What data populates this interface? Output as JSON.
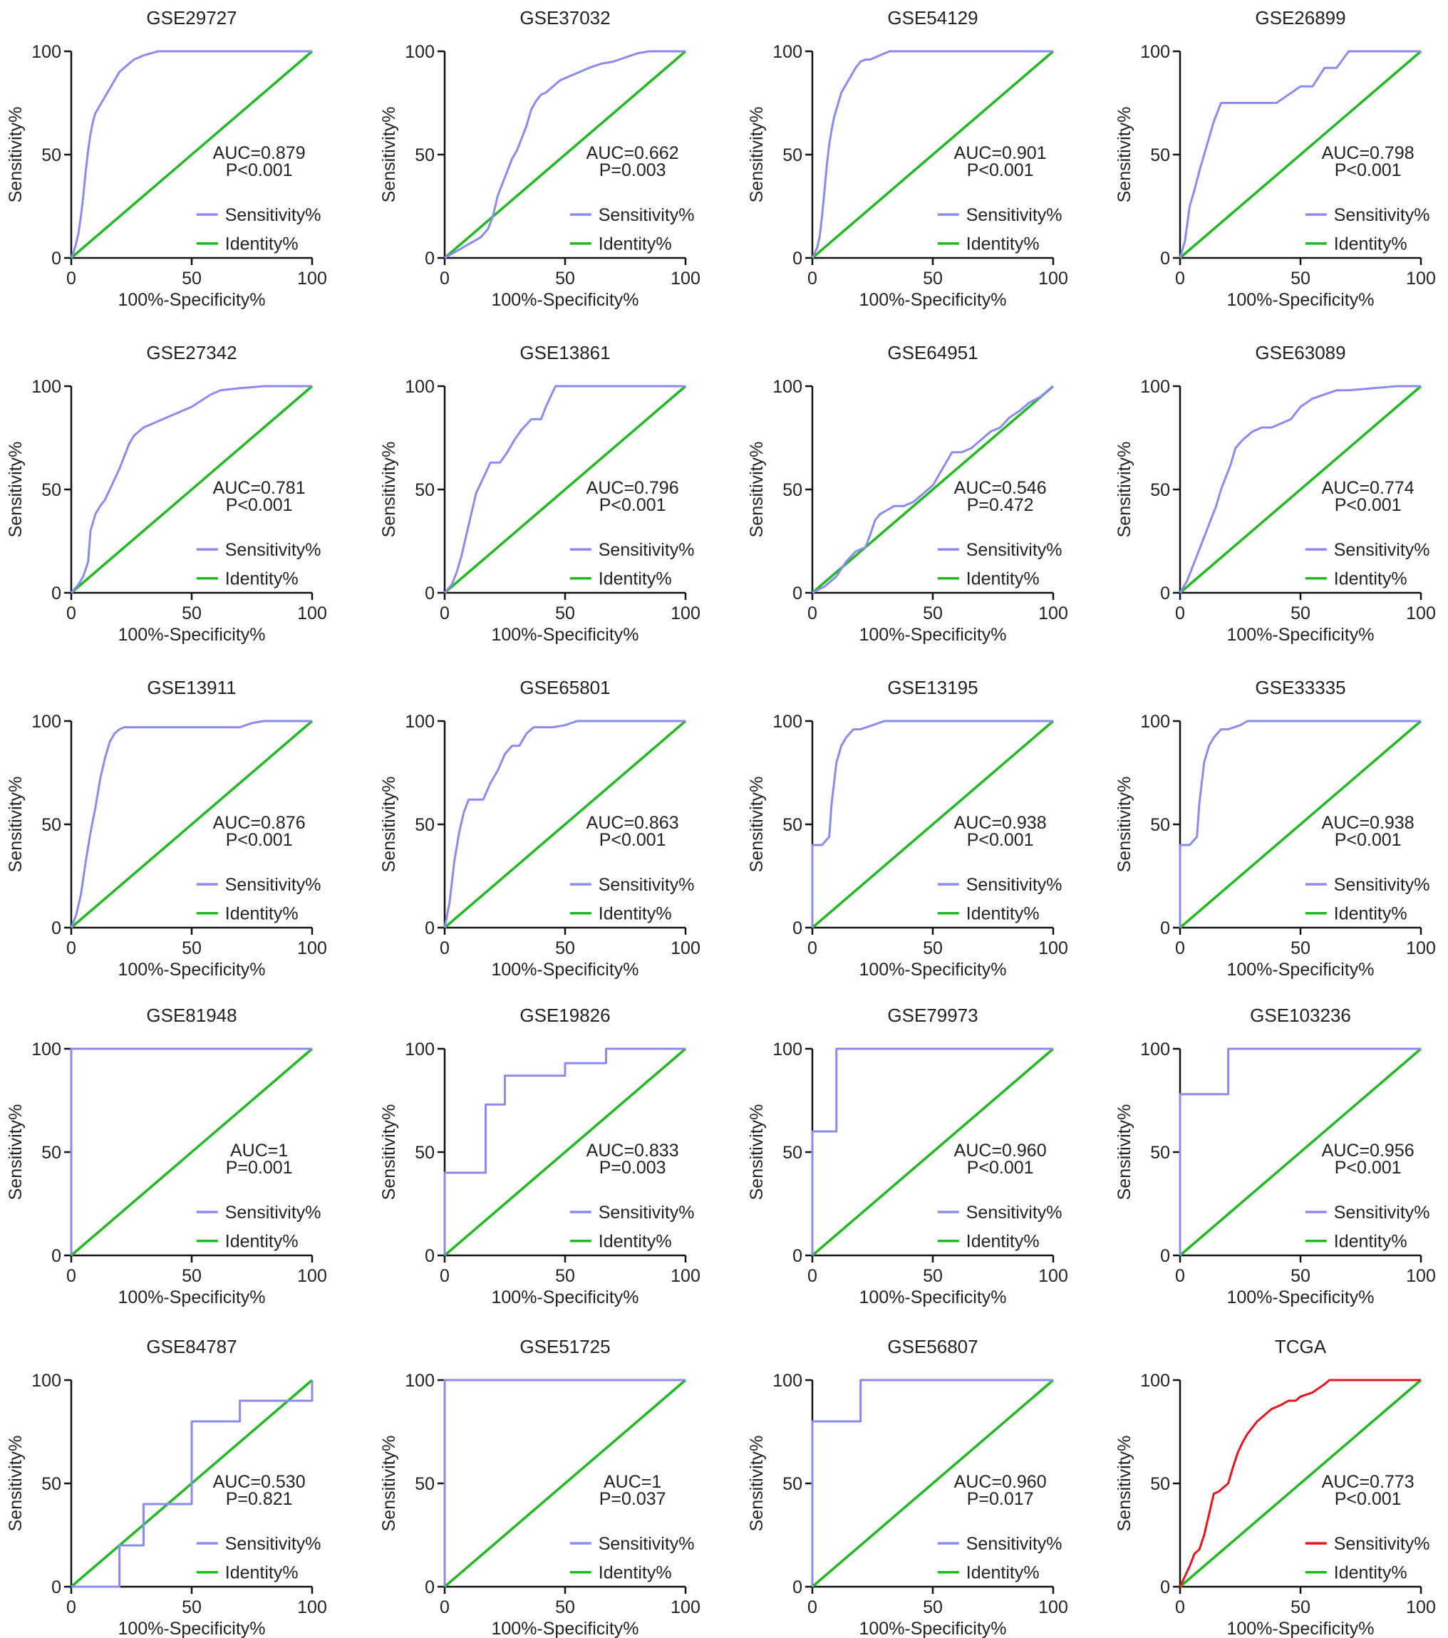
{
  "colors": {
    "sensitivity": "#8b8bef",
    "sensitivity_tcga": "#e8141c",
    "identity": "#22b822",
    "axis": "#111111"
  },
  "axis_labels": {
    "x": "100%-Specificity%",
    "y": "Sensitivity%",
    "ticks": [
      "0",
      "50",
      "100"
    ]
  },
  "chart_data": [
    {
      "type": "line",
      "title": "GSE29727",
      "auc": "AUC=0.879",
      "p": "P<0.001",
      "legend": [
        "Sensitivity%",
        "Identity%"
      ],
      "xlim": [
        0,
        100
      ],
      "ylim": [
        0,
        100
      ],
      "x": [
        0,
        1,
        2,
        3,
        4,
        5,
        6,
        7,
        8,
        9,
        10,
        12,
        14,
        16,
        18,
        20,
        22,
        24,
        26,
        28,
        30,
        33,
        36,
        40,
        45,
        50,
        100
      ],
      "y": [
        0,
        3,
        7,
        12,
        20,
        30,
        42,
        52,
        60,
        66,
        70,
        74,
        78,
        82,
        86,
        90,
        92,
        94,
        96,
        97,
        98,
        99,
        100,
        100,
        100,
        100,
        100
      ]
    },
    {
      "type": "line",
      "title": "GSE37032",
      "auc": "AUC=0.662",
      "p": "P=0.003",
      "legend": [
        "Sensitivity%",
        "Identity%"
      ],
      "xlim": [
        0,
        100
      ],
      "ylim": [
        0,
        100
      ],
      "x": [
        0,
        3,
        6,
        9,
        12,
        15,
        18,
        20,
        22,
        24,
        26,
        28,
        30,
        32,
        34,
        36,
        38,
        40,
        42,
        45,
        48,
        52,
        56,
        60,
        65,
        70,
        75,
        80,
        85,
        100
      ],
      "y": [
        0,
        2,
        4,
        6,
        8,
        10,
        14,
        20,
        30,
        36,
        42,
        48,
        52,
        58,
        64,
        72,
        76,
        79,
        80,
        83,
        86,
        88,
        90,
        92,
        94,
        95,
        97,
        99,
        100,
        100
      ]
    },
    {
      "type": "line",
      "title": "GSE54129",
      "auc": "AUC=0.901",
      "p": "P<0.001",
      "legend": [
        "Sensitivity%",
        "Identity%"
      ],
      "xlim": [
        0,
        100
      ],
      "ylim": [
        0,
        100
      ],
      "x": [
        0,
        2,
        3,
        4,
        5,
        6,
        7,
        8,
        9,
        10,
        11,
        12,
        14,
        16,
        18,
        20,
        22,
        24,
        28,
        32,
        100
      ],
      "y": [
        0,
        5,
        10,
        20,
        32,
        45,
        55,
        62,
        68,
        72,
        76,
        80,
        84,
        88,
        92,
        95,
        96,
        96,
        98,
        100,
        100
      ]
    },
    {
      "type": "line",
      "title": "GSE26899",
      "auc": "AUC=0.798",
      "p": "P<0.001",
      "legend": [
        "Sensitivity%",
        "Identity%"
      ],
      "xlim": [
        0,
        100
      ],
      "ylim": [
        0,
        100
      ],
      "x": [
        0,
        2,
        4,
        6,
        8,
        10,
        12,
        14,
        17,
        20,
        25,
        30,
        40,
        50,
        55,
        60,
        65,
        70,
        75,
        80,
        100
      ],
      "y": [
        0,
        8,
        25,
        33,
        42,
        50,
        58,
        66,
        75,
        75,
        75,
        75,
        75,
        83,
        83,
        92,
        92,
        100,
        100,
        100,
        100
      ]
    },
    {
      "type": "line",
      "title": "GSE27342",
      "auc": "AUC=0.781",
      "p": "P<0.001",
      "legend": [
        "Sensitivity%",
        "Identity%"
      ],
      "xlim": [
        0,
        100
      ],
      "ylim": [
        0,
        100
      ],
      "x": [
        0,
        3,
        5,
        7,
        8,
        10,
        12,
        14,
        16,
        18,
        20,
        22,
        24,
        26,
        28,
        30,
        34,
        38,
        42,
        46,
        50,
        54,
        58,
        62,
        70,
        80,
        90,
        100
      ],
      "y": [
        0,
        4,
        8,
        15,
        30,
        38,
        42,
        45,
        50,
        55,
        60,
        66,
        72,
        76,
        78,
        80,
        82,
        84,
        86,
        88,
        90,
        93,
        96,
        98,
        99,
        100,
        100,
        100
      ]
    },
    {
      "type": "line",
      "title": "GSE13861",
      "auc": "AUC=0.796",
      "p": "P<0.001",
      "legend": [
        "Sensitivity%",
        "Identity%"
      ],
      "xlim": [
        0,
        100
      ],
      "ylim": [
        0,
        100
      ],
      "x": [
        0,
        3,
        5,
        7,
        9,
        11,
        13,
        15,
        17,
        19,
        21,
        23,
        26,
        29,
        32,
        36,
        40,
        42,
        44,
        46,
        48,
        50,
        100
      ],
      "y": [
        0,
        4,
        10,
        18,
        28,
        38,
        48,
        53,
        58,
        63,
        63,
        63,
        68,
        74,
        79,
        84,
        84,
        90,
        95,
        100,
        100,
        100,
        100
      ]
    },
    {
      "type": "line",
      "title": "GSE64951",
      "auc": "AUC=0.546",
      "p": "P=0.472",
      "legend": [
        "Sensitivity%",
        "Identity%"
      ],
      "xlim": [
        0,
        100
      ],
      "ylim": [
        0,
        100
      ],
      "x": [
        0,
        5,
        10,
        14,
        18,
        22,
        24,
        26,
        28,
        31,
        34,
        38,
        42,
        46,
        50,
        54,
        58,
        62,
        66,
        70,
        74,
        78,
        82,
        86,
        90,
        95,
        98,
        100
      ],
      "y": [
        0,
        3,
        8,
        15,
        20,
        22,
        28,
        35,
        38,
        40,
        42,
        42,
        44,
        48,
        52,
        60,
        68,
        68,
        70,
        74,
        78,
        80,
        85,
        88,
        92,
        95,
        98,
        100
      ]
    },
    {
      "type": "line",
      "title": "GSE63089",
      "auc": "AUC=0.774",
      "p": "P<0.001",
      "legend": [
        "Sensitivity%",
        "Identity%"
      ],
      "xlim": [
        0,
        100
      ],
      "ylim": [
        0,
        100
      ],
      "x": [
        0,
        3,
        5,
        7,
        9,
        11,
        13,
        15,
        17,
        19,
        21,
        23,
        26,
        30,
        34,
        38,
        42,
        46,
        50,
        55,
        60,
        65,
        70,
        80,
        90,
        100
      ],
      "y": [
        0,
        6,
        12,
        18,
        24,
        30,
        36,
        42,
        50,
        56,
        62,
        70,
        74,
        78,
        80,
        80,
        82,
        84,
        90,
        94,
        96,
        98,
        98,
        99,
        100,
        100
      ]
    },
    {
      "type": "line",
      "title": "GSE13911",
      "auc": "AUC=0.876",
      "p": "P<0.001",
      "legend": [
        "Sensitivity%",
        "Identity%"
      ],
      "xlim": [
        0,
        100
      ],
      "ylim": [
        0,
        100
      ],
      "x": [
        0,
        2,
        4,
        6,
        8,
        10,
        12,
        14,
        16,
        18,
        20,
        22,
        25,
        30,
        40,
        50,
        60,
        70,
        75,
        80,
        100
      ],
      "y": [
        0,
        6,
        16,
        32,
        46,
        58,
        72,
        82,
        90,
        94,
        96,
        97,
        97,
        97,
        97,
        97,
        97,
        97,
        99,
        100,
        100
      ]
    },
    {
      "type": "line",
      "title": "GSE65801",
      "auc": "AUC=0.863",
      "p": "P<0.001",
      "legend": [
        "Sensitivity%",
        "Identity%"
      ],
      "xlim": [
        0,
        100
      ],
      "ylim": [
        0,
        100
      ],
      "x": [
        0,
        2,
        4,
        6,
        8,
        10,
        13,
        16,
        19,
        22,
        25,
        28,
        31,
        34,
        37,
        40,
        45,
        50,
        55,
        60,
        70,
        80,
        100
      ],
      "y": [
        0,
        12,
        32,
        46,
        56,
        62,
        62,
        62,
        70,
        76,
        84,
        88,
        88,
        94,
        97,
        97,
        97,
        98,
        100,
        100,
        100,
        100,
        100
      ]
    },
    {
      "type": "line",
      "title": "GSE13195",
      "auc": "AUC=0.938",
      "p": "P<0.001",
      "legend": [
        "Sensitivity%",
        "Identity%"
      ],
      "xlim": [
        0,
        100
      ],
      "ylim": [
        0,
        100
      ],
      "x": [
        0,
        0,
        4,
        7,
        8,
        10,
        12,
        14,
        17,
        20,
        25,
        30,
        40,
        100
      ],
      "y": [
        0,
        40,
        40,
        44,
        60,
        80,
        88,
        92,
        96,
        96,
        98,
        100,
        100,
        100
      ]
    },
    {
      "type": "line",
      "title": "GSE33335",
      "auc": "AUC=0.938",
      "p": "P<0.001",
      "legend": [
        "Sensitivity%",
        "Identity%"
      ],
      "xlim": [
        0,
        100
      ],
      "ylim": [
        0,
        100
      ],
      "x": [
        0,
        0,
        4,
        7,
        8,
        10,
        12,
        14,
        17,
        20,
        25,
        28,
        35,
        100
      ],
      "y": [
        0,
        40,
        40,
        44,
        60,
        80,
        88,
        92,
        96,
        96,
        98,
        100,
        100,
        100
      ]
    },
    {
      "type": "line",
      "title": "GSE81948",
      "auc": "AUC=1",
      "p": "P=0.001",
      "legend": [
        "Sensitivity%",
        "Identity%"
      ],
      "xlim": [
        0,
        100
      ],
      "ylim": [
        0,
        100
      ],
      "x": [
        0,
        0,
        100
      ],
      "y": [
        0,
        100,
        100
      ]
    },
    {
      "type": "line",
      "title": "GSE19826",
      "auc": "AUC=0.833",
      "p": "P=0.003",
      "legend": [
        "Sensitivity%",
        "Identity%"
      ],
      "xlim": [
        0,
        100
      ],
      "ylim": [
        0,
        100
      ],
      "x": [
        0,
        0,
        17,
        17,
        25,
        25,
        50,
        50,
        67,
        67,
        100
      ],
      "y": [
        0,
        40,
        40,
        73,
        73,
        87,
        87,
        93,
        93,
        100,
        100
      ]
    },
    {
      "type": "line",
      "title": "GSE79973",
      "auc": "AUC=0.960",
      "p": "P<0.001",
      "legend": [
        "Sensitivity%",
        "Identity%"
      ],
      "xlim": [
        0,
        100
      ],
      "ylim": [
        0,
        100
      ],
      "x": [
        0,
        0,
        10,
        10,
        100
      ],
      "y": [
        0,
        60,
        60,
        100,
        100
      ]
    },
    {
      "type": "line",
      "title": "GSE103236",
      "auc": "AUC=0.956",
      "p": "P<0.001",
      "legend": [
        "Sensitivity%",
        "Identity%"
      ],
      "xlim": [
        0,
        100
      ],
      "ylim": [
        0,
        100
      ],
      "x": [
        0,
        0,
        20,
        20,
        100
      ],
      "y": [
        0,
        78,
        78,
        100,
        100
      ]
    },
    {
      "type": "line",
      "title": "GSE84787",
      "auc": "AUC=0.530",
      "p": "P=0.821",
      "legend": [
        "Sensitivity%",
        "Identity%"
      ],
      "xlim": [
        0,
        100
      ],
      "ylim": [
        0,
        100
      ],
      "x": [
        0,
        20,
        20,
        30,
        30,
        40,
        40,
        50,
        50,
        70,
        70,
        100,
        100
      ],
      "y": [
        0,
        0,
        20,
        20,
        40,
        40,
        40,
        40,
        80,
        80,
        90,
        90,
        100
      ]
    },
    {
      "type": "line",
      "title": "GSE51725",
      "auc": "AUC=1",
      "p": "P=0.037",
      "legend": [
        "Sensitivity%",
        "Identity%"
      ],
      "xlim": [
        0,
        100
      ],
      "ylim": [
        0,
        100
      ],
      "x": [
        0,
        0,
        100
      ],
      "y": [
        0,
        100,
        100
      ]
    },
    {
      "type": "line",
      "title": "GSE56807",
      "auc": "AUC=0.960",
      "p": "P=0.017",
      "legend": [
        "Sensitivity%",
        "Identity%"
      ],
      "xlim": [
        0,
        100
      ],
      "ylim": [
        0,
        100
      ],
      "x": [
        0,
        0,
        20,
        20,
        100
      ],
      "y": [
        0,
        80,
        80,
        100,
        100
      ]
    },
    {
      "type": "line",
      "title": "TCGA",
      "auc": "AUC=0.773",
      "p": "P<0.001",
      "legend": [
        "Sensitivity%",
        "Identity%"
      ],
      "xlim": [
        0,
        100
      ],
      "ylim": [
        0,
        100
      ],
      "color_key": "sensitivity_tcga",
      "x": [
        0,
        2,
        4,
        6,
        8,
        10,
        12,
        14,
        16,
        18,
        20,
        22,
        24,
        26,
        28,
        30,
        32,
        34,
        36,
        38,
        40,
        42,
        45,
        48,
        50,
        55,
        60,
        62,
        70,
        80,
        100
      ],
      "y": [
        0,
        5,
        10,
        16,
        18,
        25,
        35,
        45,
        46,
        48,
        50,
        58,
        65,
        70,
        74,
        77,
        80,
        82,
        84,
        86,
        87,
        88,
        90,
        90,
        92,
        94,
        98,
        100,
        100,
        100,
        100
      ]
    }
  ]
}
